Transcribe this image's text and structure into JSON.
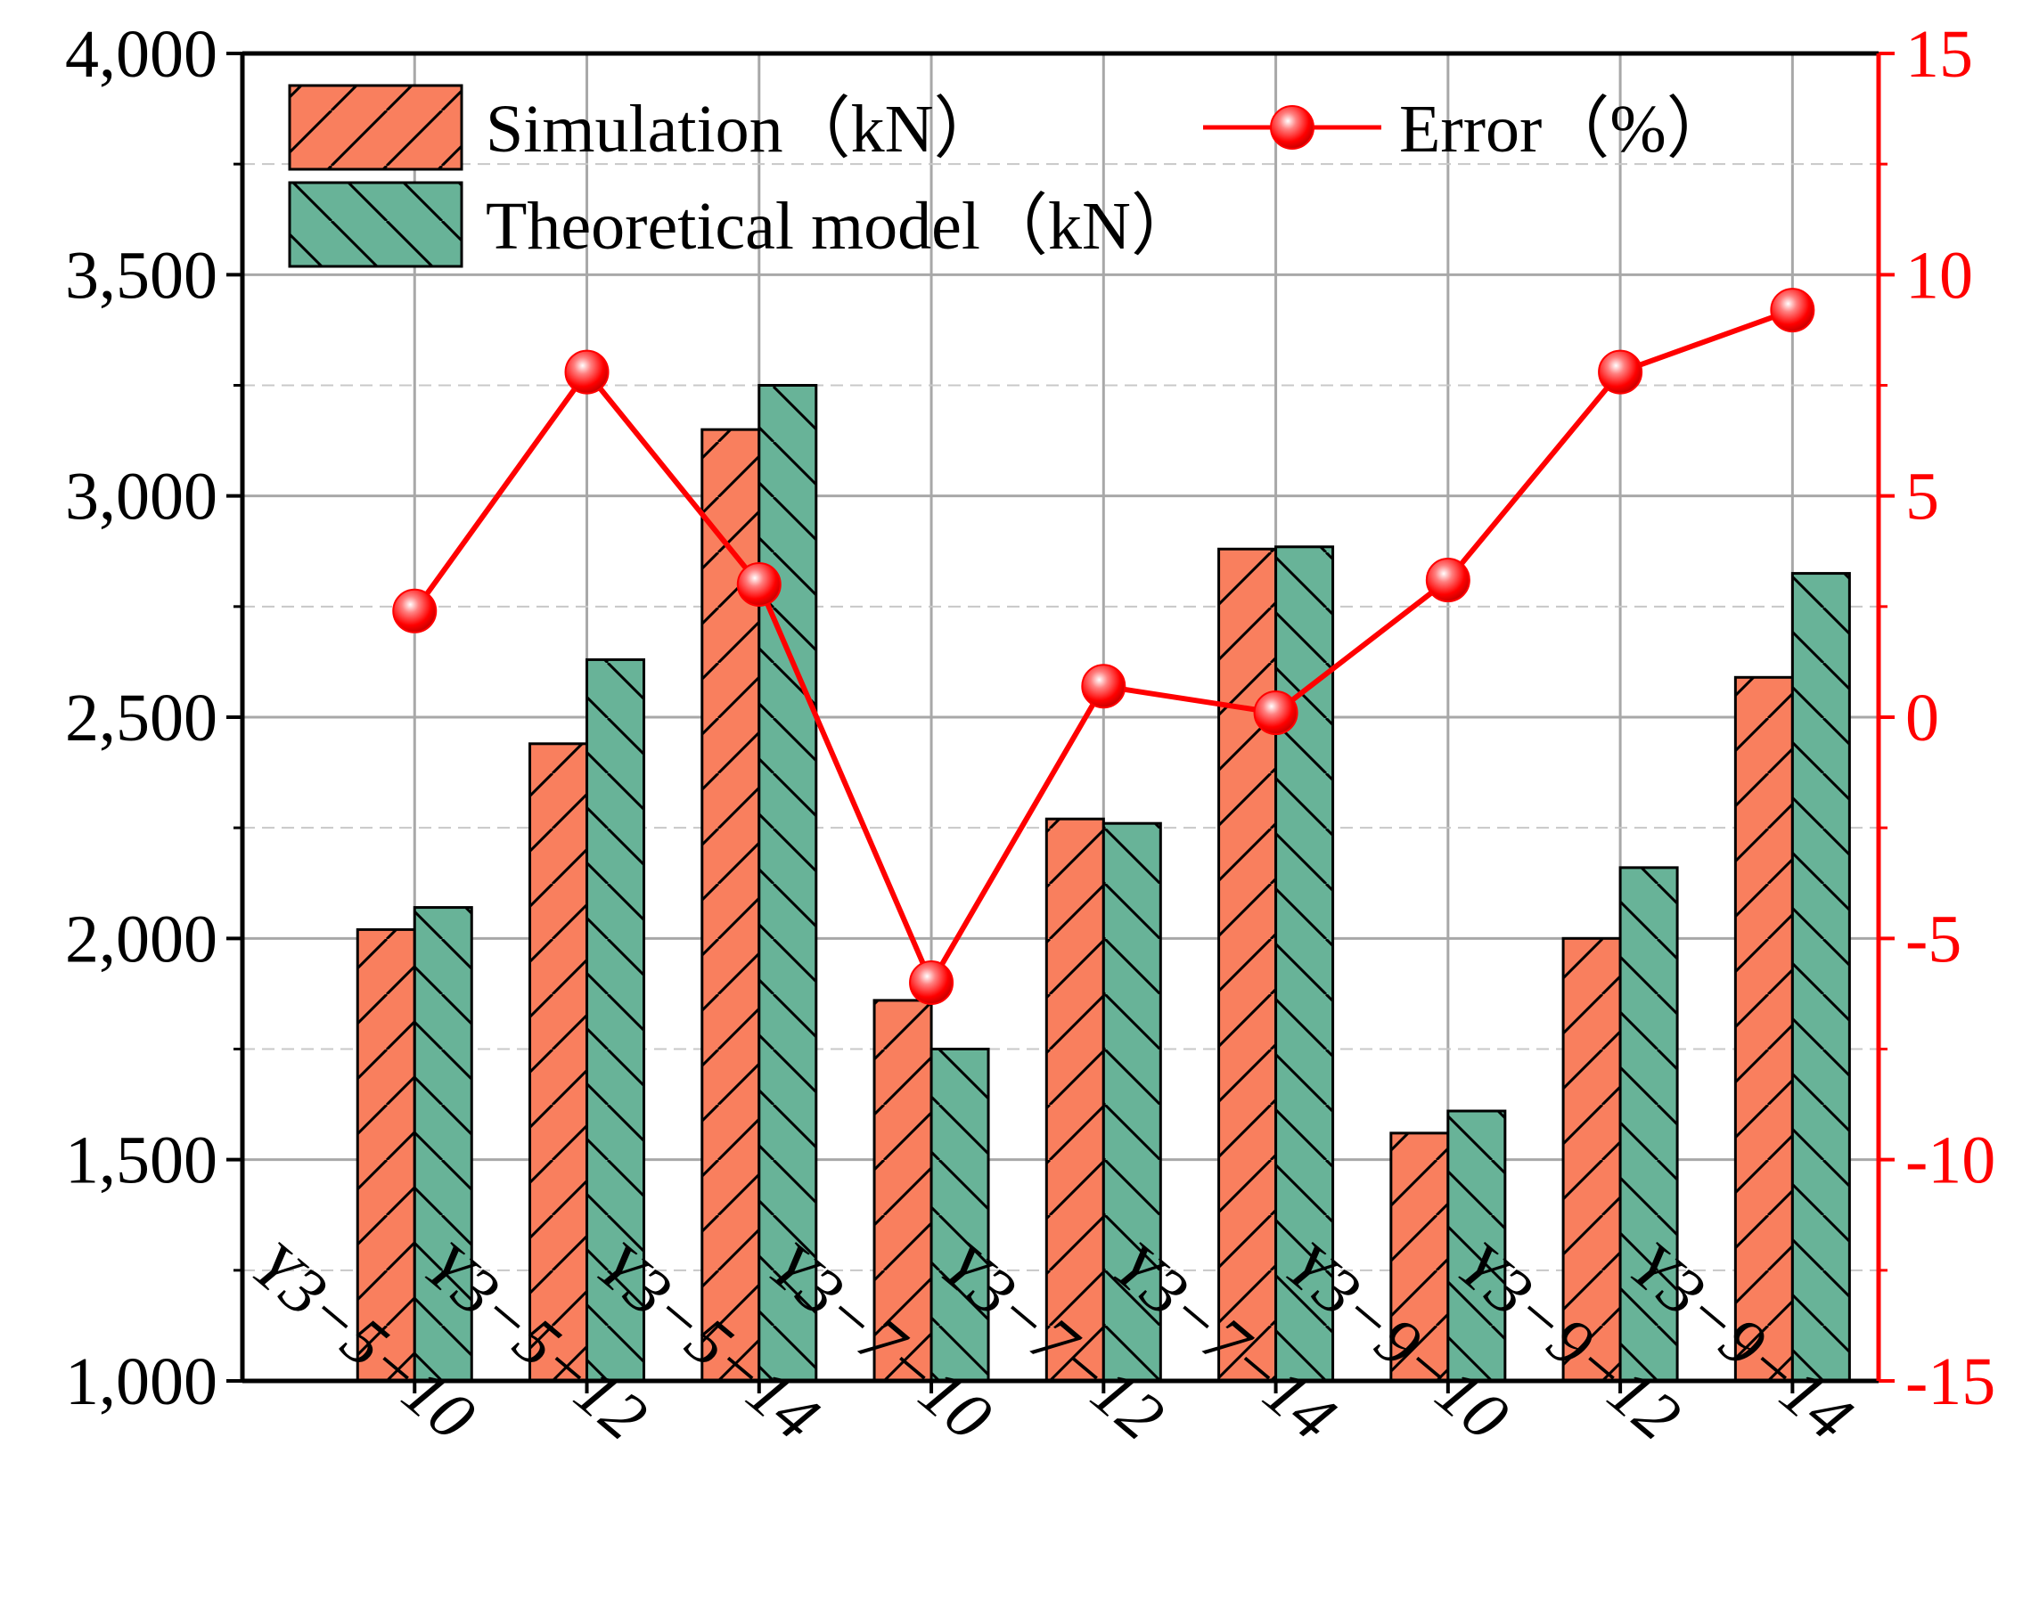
{
  "chart_data": {
    "type": "bar",
    "categories": [
      "Y3−5−10",
      "Y3−5−12",
      "Y3−5−14",
      "Y3−7−10",
      "Y3−7−12",
      "Y3−7−14",
      "Y3−9−10",
      "Y3−9−12",
      "Y3−9−14"
    ],
    "series": [
      {
        "name": "Simulation（kN）",
        "kind": "bar",
        "axis": "left",
        "color": "#f97f5e",
        "hatch": "/",
        "values": [
          2020,
          2440,
          3150,
          1860,
          2270,
          2880,
          1560,
          2000,
          2590
        ]
      },
      {
        "name": "Theoretical model（kN）",
        "kind": "bar",
        "axis": "left",
        "color": "#68b398",
        "hatch": "\\",
        "values": [
          2070,
          2630,
          3250,
          1750,
          2260,
          2885,
          1610,
          2160,
          2825
        ]
      },
      {
        "name": "Error（%）",
        "kind": "line",
        "axis": "right",
        "color": "#ff0000",
        "values": [
          2.4,
          7.8,
          3.0,
          -6.0,
          0.7,
          0.1,
          3.1,
          7.8,
          9.2
        ]
      }
    ],
    "y_left": {
      "ylim": [
        1000,
        4000
      ],
      "ticks": [
        1000,
        1500,
        2000,
        2500,
        3000,
        3500,
        4000
      ],
      "tick_labels": [
        "1,000",
        "1,500",
        "2,000",
        "2,500",
        "3,000",
        "3,500",
        "4,000"
      ]
    },
    "y_right": {
      "ylim": [
        -15,
        15
      ],
      "ticks": [
        -15,
        -10,
        -5,
        0,
        5,
        10,
        15
      ],
      "tick_labels": [
        "-15",
        "-10",
        "-5",
        "0",
        "5",
        "10",
        "15"
      ],
      "color": "#ff0000"
    },
    "grid": true,
    "legend_position": "top",
    "title": "",
    "xlabel": "",
    "ylabel": ""
  }
}
